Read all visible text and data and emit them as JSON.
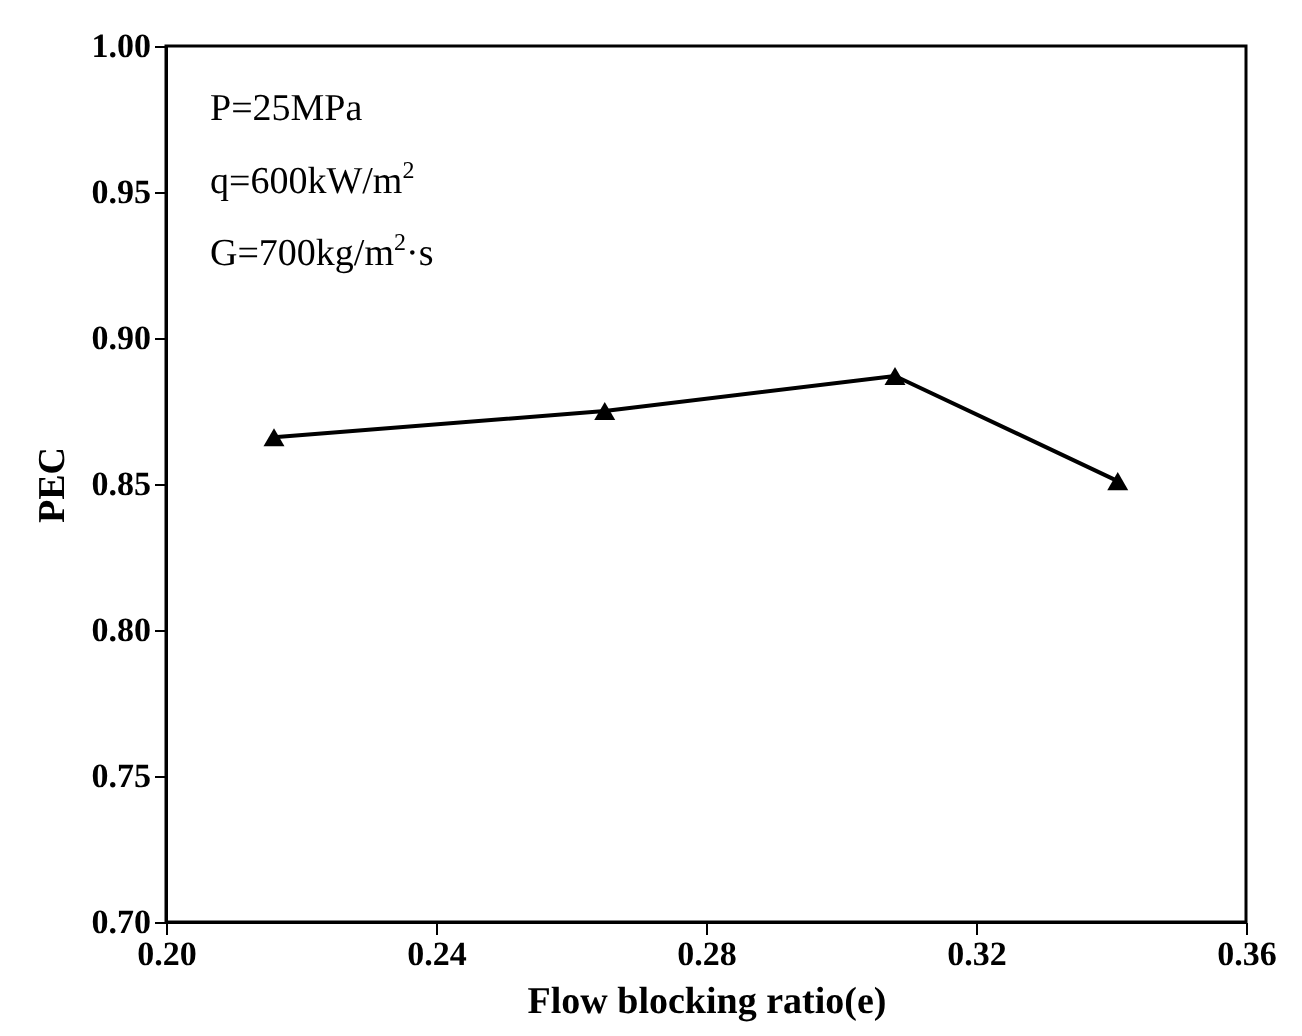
{
  "chart_data": {
    "type": "line",
    "xlabel": "Flow blocking ratio(e)",
    "ylabel": "PEC",
    "x": [
      0.216,
      0.265,
      0.308,
      0.341
    ],
    "series": [
      {
        "color": "#000000",
        "values": [
          0.866,
          0.875,
          0.887,
          0.851
        ]
      }
    ],
    "xlim": [
      0.2,
      0.36
    ],
    "xticks": [
      {
        "value": 0.2,
        "label": "0.20"
      },
      {
        "value": 0.24,
        "label": "0.24"
      },
      {
        "value": 0.28,
        "label": "0.28"
      },
      {
        "value": 0.32,
        "label": "0.32"
      },
      {
        "value": 0.36,
        "label": "0.36"
      }
    ],
    "ylim": [
      0.7,
      1.0
    ],
    "yticks": [
      {
        "value": 0.7,
        "label": "0.70"
      },
      {
        "value": 0.75,
        "label": "0.75"
      },
      {
        "value": 0.8,
        "label": "0.80"
      },
      {
        "value": 0.85,
        "label": "0.85"
      },
      {
        "value": 0.9,
        "label": "0.90"
      },
      {
        "value": 0.95,
        "label": "0.95"
      },
      {
        "value": 1.0,
        "label": "1.00"
      }
    ],
    "annotations": [
      "P=25MPa",
      "q=600kW/m$^{2}$",
      "G=700kg/m$^{2}$·s"
    ],
    "marker": "triangle",
    "line_style": "solid",
    "grid": false,
    "legend": false
  }
}
